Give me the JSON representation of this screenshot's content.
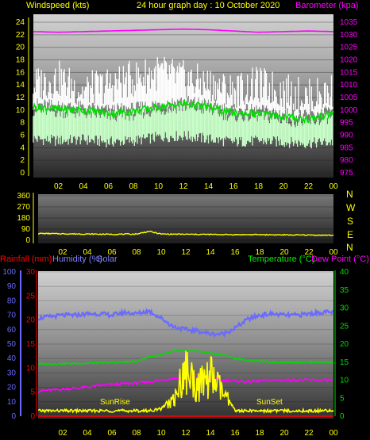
{
  "header": {
    "left_label": "Windspeed (kts)",
    "center_label": "24 hour graph day : 10 October 2020",
    "right_label": "Barometer (kpa)"
  },
  "panel3": {
    "rainfall_label": "Rainfall (mm)",
    "humidity_label": "Humidity (%)",
    "solar_label": "Solar",
    "temperature_label": "Temperature (°C)",
    "dewpoint_label": "Dew Point (°C)",
    "sunrise_label": "SunRise",
    "sunset_label": "SunSet"
  },
  "compass": [
    "N",
    "W",
    "S",
    "E",
    "N"
  ],
  "colors": {
    "windspeed": "#ffff00",
    "barometer": "#ff00ff",
    "gust": "#ffffff",
    "avg_wind": "#00dd00",
    "wind_band": "#c8ffc8",
    "direction": "#ffff00",
    "rainfall": "#ff0000",
    "humidity": "#6a6aff",
    "solar": "#ffff00",
    "temperature": "#00dd00",
    "dewpoint": "#ff00ff"
  },
  "chart_data": [
    {
      "type": "line",
      "panel": "wind_barometer",
      "x_ticks": [
        "02",
        "04",
        "06",
        "08",
        "10",
        "12",
        "14",
        "16",
        "18",
        "20",
        "22",
        "00"
      ],
      "y_left_ticks": [
        "0",
        "2",
        "4",
        "6",
        "8",
        "10",
        "12",
        "14",
        "16",
        "18",
        "20",
        "22",
        "24"
      ],
      "y_left_range": [
        0,
        24
      ],
      "y_right_ticks": [
        "975",
        "980",
        "985",
        "990",
        "995",
        "1000",
        "1005",
        "1010",
        "1015",
        "1020",
        "1025",
        "1030",
        "1035"
      ],
      "y_right_range": [
        975,
        1035
      ],
      "x": [
        0,
        2,
        4,
        6,
        8,
        10,
        12,
        14,
        16,
        18,
        20,
        22,
        24
      ],
      "series": [
        {
          "values": [
            22.5,
            22.4,
            22.5,
            22.6,
            22.7,
            22.8,
            22.9,
            22.8,
            22.6,
            22.4,
            22.5,
            22.6,
            22.5
          ]
        },
        {
          "values": [
            14,
            15,
            13,
            14,
            15,
            16,
            15,
            14,
            13,
            14,
            13,
            12,
            13
          ]
        },
        {
          "values": [
            10.5,
            10.2,
            10,
            9.5,
            9.8,
            10.5,
            11,
            10.5,
            9.5,
            9.5,
            9,
            8.5,
            9.5
          ]
        },
        {
          "values": [
            6.5,
            6.2,
            6.4,
            6,
            6.2,
            6.8,
            7,
            6.5,
            6,
            6.2,
            6,
            5.8,
            6
          ]
        }
      ]
    },
    {
      "type": "line",
      "panel": "wind_direction",
      "x_ticks": [
        "02",
        "04",
        "06",
        "08",
        "10",
        "12",
        "14",
        "16",
        "18",
        "20",
        "22",
        "00"
      ],
      "y_ticks": [
        "0",
        "90",
        "180",
        "270",
        "360"
      ],
      "y_range": [
        0,
        360
      ],
      "x": [
        0,
        2,
        4,
        6,
        8,
        9,
        10,
        12,
        14,
        16,
        18,
        20,
        22,
        24
      ],
      "series": [
        {
          "values": [
            55,
            52,
            50,
            48,
            50,
            72,
            50,
            48,
            47,
            45,
            45,
            43,
            42,
            40
          ]
        }
      ]
    },
    {
      "type": "line",
      "panel": "temp_humidity_rain_solar",
      "x_ticks": [
        "02",
        "04",
        "06",
        "08",
        "10",
        "12",
        "14",
        "16",
        "18",
        "20",
        "22",
        "00"
      ],
      "y_humidity_ticks": [
        "0",
        "10",
        "20",
        "30",
        "40",
        "50",
        "60",
        "70",
        "80",
        "90",
        "100"
      ],
      "y_humidity_range": [
        0,
        100
      ],
      "y_rain_ticks": [
        "0",
        "5",
        "10",
        "15",
        "20",
        "25",
        "30"
      ],
      "y_rain_range": [
        0,
        30
      ],
      "y_temp_ticks": [
        "0",
        "5",
        "10",
        "15",
        "20",
        "25",
        "30",
        "35",
        "40"
      ],
      "y_temp_range": [
        0,
        40
      ],
      "x": [
        0,
        1,
        2,
        3,
        4,
        5,
        6,
        7,
        8,
        9,
        10,
        11,
        12,
        13,
        14,
        15,
        16,
        17,
        18,
        19,
        20,
        21,
        22,
        23,
        24
      ],
      "series": [
        {
          "values": [
            68,
            69,
            70,
            70,
            71,
            71,
            70,
            72,
            71,
            73,
            68,
            62,
            60,
            59,
            57,
            57,
            61,
            67,
            70,
            71,
            70,
            70,
            71,
            72,
            72
          ]
        },
        {
          "values": [
            14.5,
            14.5,
            14.6,
            14.6,
            14.7,
            14.8,
            14.9,
            15,
            15.2,
            16.5,
            17,
            18,
            18.2,
            18,
            17.5,
            17,
            16,
            15.5,
            15.2,
            15,
            15,
            15,
            15,
            15,
            15
          ]
        },
        {
          "values": [
            7,
            7.2,
            7.5,
            7.8,
            8,
            8.5,
            8.8,
            9,
            9.2,
            9.5,
            10,
            10.5,
            10.8,
            11,
            10.5,
            10,
            9.8,
            9.5,
            9.8,
            10,
            10,
            10,
            10,
            10,
            10
          ]
        },
        {
          "values": [
            0,
            0,
            0,
            0,
            0,
            0,
            0,
            0,
            0,
            0,
            0,
            0,
            0,
            0,
            0,
            0,
            0,
            0,
            0,
            0,
            0,
            0,
            0,
            0,
            0
          ]
        },
        {
          "values": [
            1.5,
            1.5,
            1.5,
            1.5,
            1.5,
            1.5,
            1.5,
            1.5,
            1.5,
            1.5,
            2,
            6,
            16,
            10,
            14,
            8,
            1.5,
            1.5,
            1.5,
            1.5,
            1.5,
            1.5,
            1.5,
            1.5,
            1.5
          ]
        }
      ]
    }
  ]
}
